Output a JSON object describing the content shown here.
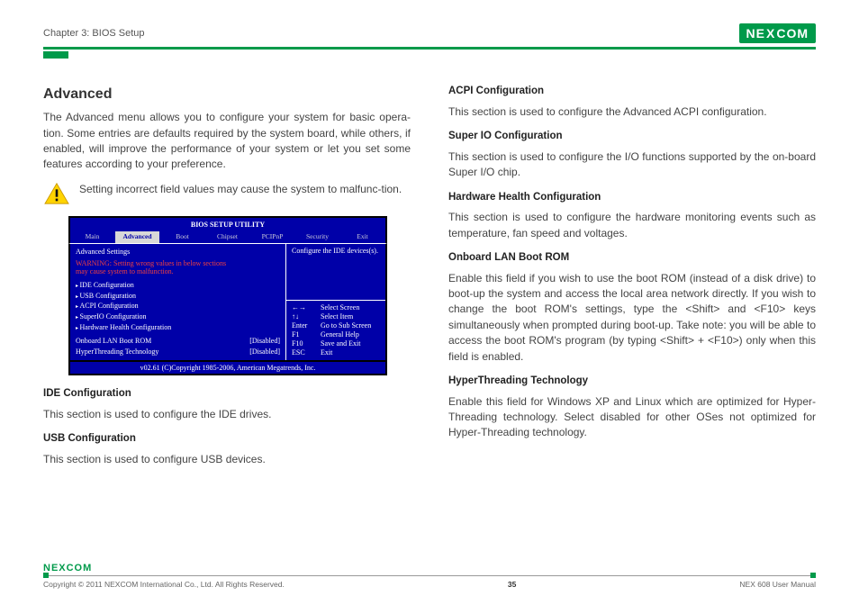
{
  "header": {
    "chapter": "Chapter 3: BIOS Setup",
    "logo_text": "NE",
    "logo_x": "X",
    "logo_text2": "COM"
  },
  "left": {
    "title": "Advanced",
    "intro": "The Advanced menu allows you to configure your system for basic opera-tion. Some entries are defaults required by the system board, while others, if enabled, will improve the performance of your system or let you set some features according to your preference.",
    "warn": "Setting incorrect field values may cause the system to malfunc-tion.",
    "ide_h": "IDE Configuration",
    "ide_p": "This section is used to configure the IDE drives.",
    "usb_h": "USB Configuration",
    "usb_p": "This section is used to configure USB devices."
  },
  "right": {
    "acpi_h": "ACPI Configuration",
    "acpi_p": "This section is used to configure the Advanced ACPI configuration.",
    "sio_h": "Super IO Configuration",
    "sio_p": "This section is used to configure the I/O functions supported by the on-board Super I/O chip.",
    "hh_h": "Hardware Health Configuration",
    "hh_p": "This section is used to configure the hardware monitoring events such as temperature, fan speed and voltages.",
    "lan_h": "Onboard LAN Boot ROM",
    "lan_p": "Enable this field if you wish to use the boot ROM (instead of a disk drive) to boot-up the system and access the local area network directly. If you wish to change the boot ROM's settings, type the <Shift> and <F10> keys simultaneously when prompted during boot-up. Take note: you will be able to access the boot ROM's program (by typing <Shift> + <F10>) only when this field is enabled.",
    "ht_h": "HyperThreading Technology",
    "ht_p": "Enable this field for Windows XP and Linux which are optimized for Hyper-Threading technology. Select disabled for other OSes not optimized for Hyper-Threading technology."
  },
  "bios": {
    "title": "BIOS SETUP UTILITY",
    "tabs": [
      "Main",
      "Advanced",
      "Boot",
      "Chipset",
      "PCIPnP",
      "Security",
      "Exit"
    ],
    "selected_tab": 1,
    "adv_head": "Advanced Settings",
    "warn_line": "WARNING:  Setting wrong values in below sections\n                may cause system to malfunction.",
    "menu": [
      "IDE Configuration",
      "USB Configuration",
      "ACPI Configuration",
      "SuperIO Configuration",
      "Hardware Health Configuration"
    ],
    "opts": [
      {
        "label": "Onboard LAN Boot ROM",
        "value": "[Disabled]"
      },
      {
        "label": "HyperThreading Technology",
        "value": "[Disabled]"
      }
    ],
    "help": "Configure the IDE devices(s).",
    "keys": [
      [
        "←→",
        "Select Screen"
      ],
      [
        "↑↓",
        "Select Item"
      ],
      [
        "Enter",
        "Go to Sub Screen"
      ],
      [
        "F1",
        "General Help"
      ],
      [
        "F10",
        "Save and Exit"
      ],
      [
        "ESC",
        "Exit"
      ]
    ],
    "copyright": "v02.61 (C)Copyright 1985-2006, American Megatrends, Inc.",
    "colors": {
      "bg": "#0000a8",
      "sel_bg": "#d8d8d8",
      "warn_color": "#f04040"
    }
  },
  "footer": {
    "logo": "NEXCOM",
    "copyright": "Copyright © 2011 NEXCOM International Co., Ltd. All Rights Reserved.",
    "page": "35",
    "manual": "NEX 608 User Manual"
  }
}
